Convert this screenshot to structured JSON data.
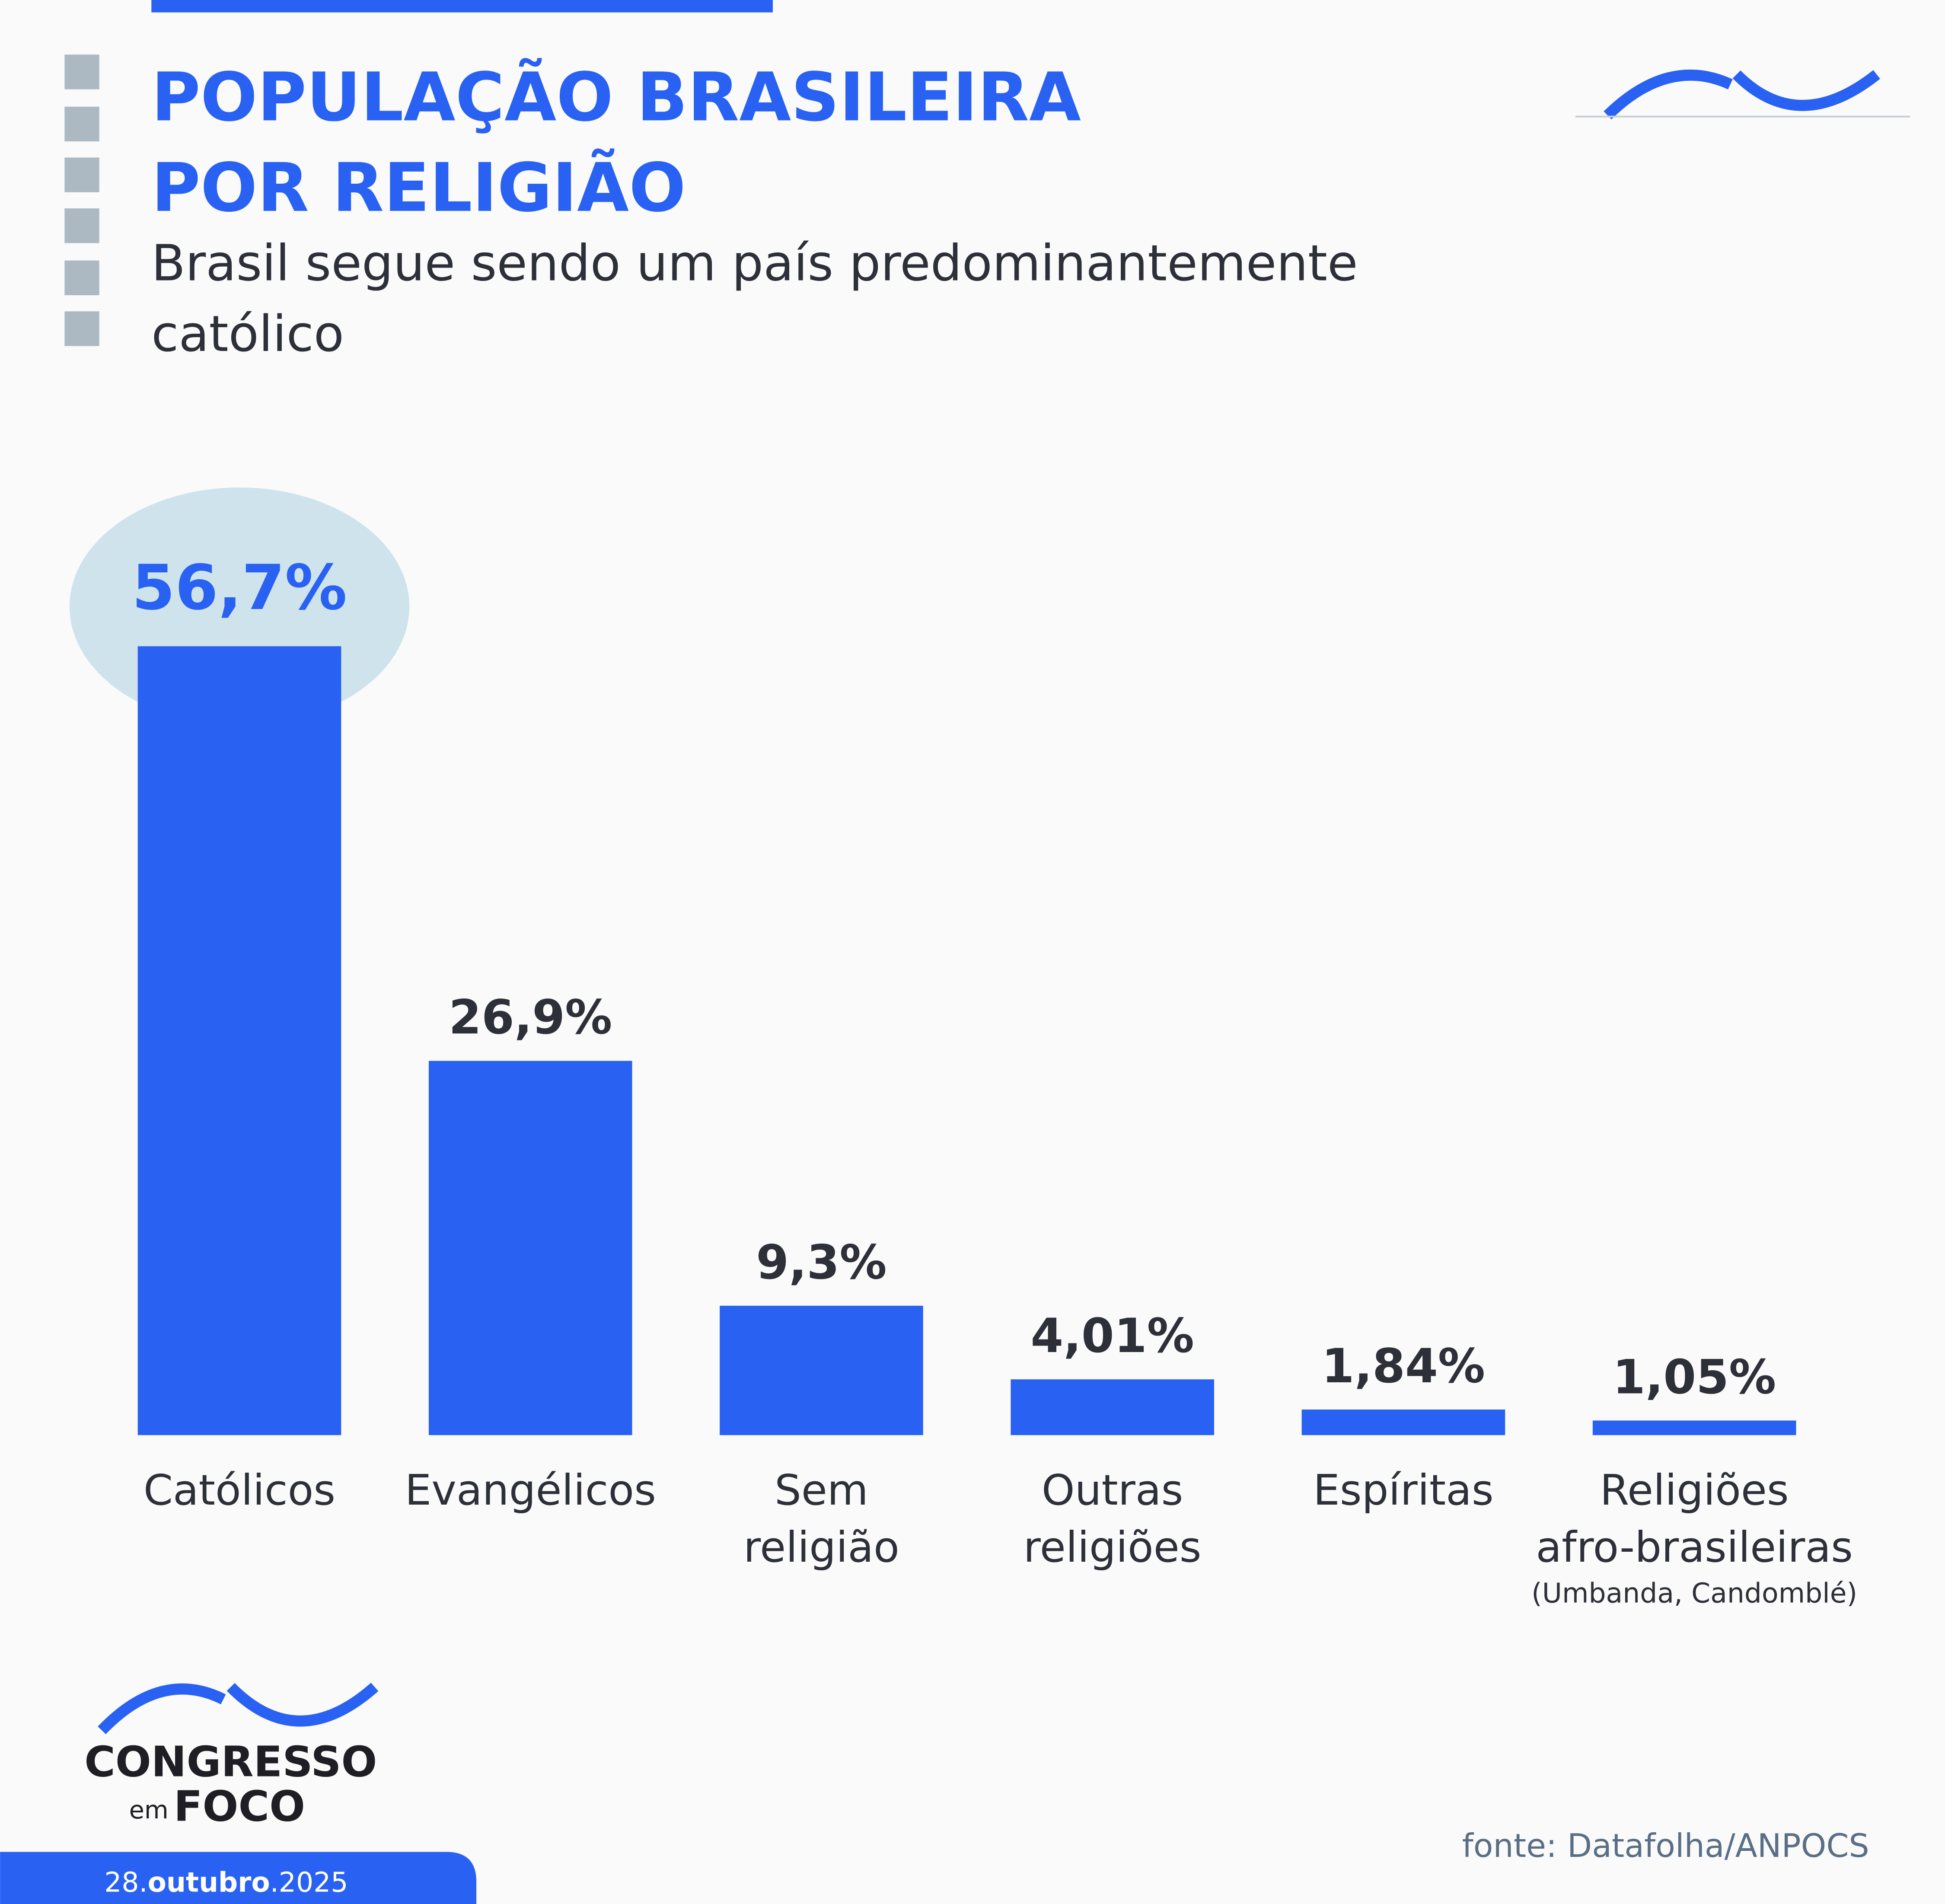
{
  "chart_data": {
    "type": "bar",
    "title": [
      "POPULAÇÃO BRASILEIRA",
      "POR RELIGIÃO"
    ],
    "subtitle": [
      "Brasil segue sendo um país predominantemente",
      "católico"
    ],
    "categories": [
      "Católicos",
      "Evangélicos",
      "Sem religião",
      "Outras religiões",
      "Espíritas",
      "Religiões afro-brasileiras"
    ],
    "category_notes": [
      null,
      null,
      null,
      null,
      null,
      "(Umbanda, Candomblé)"
    ],
    "values": [
      56.7,
      26.9,
      9.3,
      4.01,
      1.84,
      1.05
    ],
    "value_labels": [
      "56,7%",
      "26,9%",
      "9,3%",
      "4,01%",
      "1,84%",
      "1,05%"
    ],
    "color": "#2962f2",
    "highlight_color": "#cfe3ec",
    "label_color": "#2d3038",
    "source": "fonte: Datafolha/ANPOCS",
    "brand": {
      "line1": "CONGRESSO",
      "small": "em",
      "line2": "FOCO"
    },
    "date": "28.outubro.2025"
  }
}
